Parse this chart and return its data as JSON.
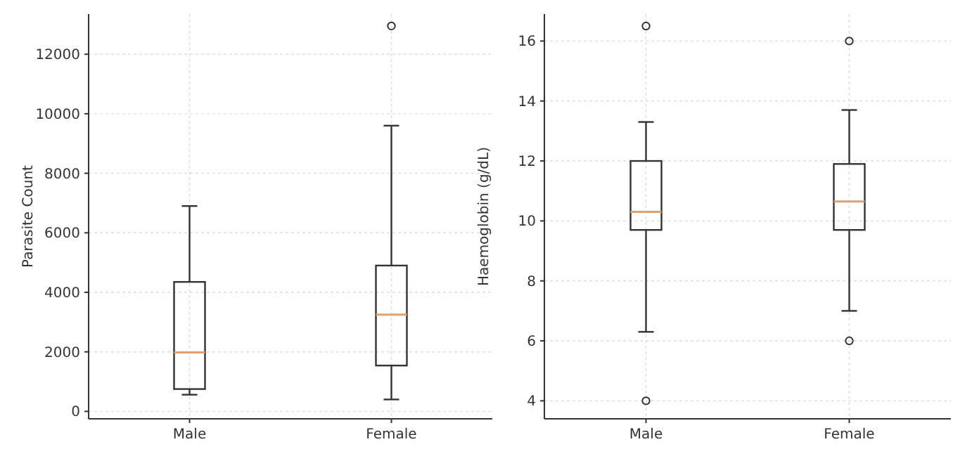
{
  "chart_data": [
    {
      "type": "box",
      "ylabel": "Parasite Count",
      "categories": [
        "Male",
        "Female"
      ],
      "ylim": [
        -250,
        13350
      ],
      "yticks": [
        0,
        2000,
        4000,
        6000,
        8000,
        10000,
        12000
      ],
      "grid": true,
      "color": "#333333",
      "boxes": [
        {
          "low": 560,
          "q1": 750,
          "median": 1980,
          "q3": 4350,
          "high": 6900
        },
        {
          "low": 400,
          "q1": 1540,
          "median": 3250,
          "q3": 4900,
          "high": 9600,
          "outliers": [
            12950
          ]
        }
      ]
    },
    {
      "type": "box",
      "ylabel": "Haemoglobin (g/dL)",
      "categories": [
        "Male",
        "Female"
      ],
      "ylim": [
        3.4,
        16.9
      ],
      "yticks": [
        4,
        6,
        8,
        10,
        12,
        14,
        16
      ],
      "grid": true,
      "color": "#333333",
      "boxes": [
        {
          "low": 6.3,
          "q1": 9.7,
          "median": 10.3,
          "q3": 12.0,
          "high": 13.3,
          "outliers": [
            16.5,
            4
          ]
        },
        {
          "low": 7.0,
          "q1": 9.7,
          "median": 10.65,
          "q3": 11.9,
          "high": 13.7,
          "outliers": [
            16,
            6
          ]
        }
      ]
    }
  ]
}
